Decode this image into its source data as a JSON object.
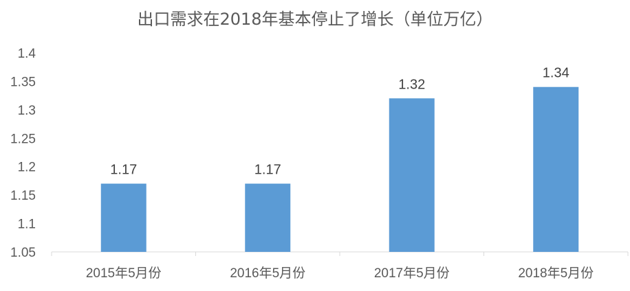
{
  "chart_data": {
    "type": "bar",
    "title": "出口需求在2018年基本停止了增长（单位万亿）",
    "categories": [
      "2015年5月份",
      "2016年5月份",
      "2017年5月份",
      "2018年5月份"
    ],
    "values": [
      1.17,
      1.17,
      1.32,
      1.34
    ],
    "data_labels": [
      "1.17",
      "1.17",
      "1.32",
      "1.34"
    ],
    "ylim": [
      1.05,
      1.4
    ],
    "yticks": [
      "1.4",
      "1.35",
      "1.3",
      "1.25",
      "1.2",
      "1.15",
      "1.1",
      "1.05"
    ],
    "xlabel": "",
    "ylabel": "",
    "grid": false,
    "bar_color": "#5b9bd5"
  }
}
